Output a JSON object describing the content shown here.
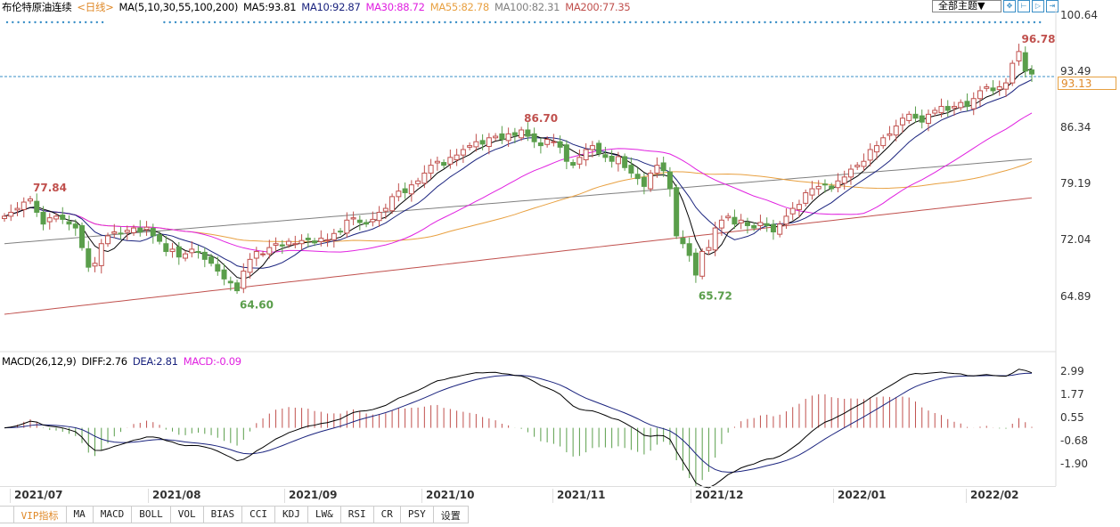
{
  "header": {
    "title": "布伦特原油连续",
    "period": "<日线>",
    "ma_label": "MA(5,10,30,55,100,200)",
    "ma": [
      {
        "label": "MA5:93.81",
        "color": "#000000"
      },
      {
        "label": "MA10:92.87",
        "color": "#1a237e"
      },
      {
        "label": "MA30:88.72",
        "color": "#e020e0"
      },
      {
        "label": "MA55:82.78",
        "color": "#e8a040"
      },
      {
        "label": "MA100:82.31",
        "color": "#808080"
      },
      {
        "label": "MA200:77.35",
        "color": "#c0504d"
      }
    ]
  },
  "toolbar": {
    "theme": "全部主题▼",
    "buttons": [
      "✥",
      "⊢",
      "▷",
      "⇥"
    ]
  },
  "macd_header": {
    "label": "MACD(26,12,9)",
    "diff": "DIFF:2.76",
    "dea": "DEA:2.81",
    "macd": "MACD:-0.09"
  },
  "price_axis": [
    "100.64",
    "93.49",
    "86.34",
    "79.19",
    "72.04",
    "64.89"
  ],
  "last_price": "93.13",
  "macd_axis": [
    "2.99",
    "1.77",
    "0.55",
    "-0.68",
    "-1.90"
  ],
  "date_labels": [
    "2021/07",
    "2021/08",
    "2021/09",
    "2021/10",
    "2021/11",
    "2021/12",
    "2022/01",
    "2022/02"
  ],
  "tabs": [
    "VIP指标",
    "MA",
    "MACD",
    "BOLL",
    "VOL",
    "BIAS",
    "CCI",
    "KDJ",
    "LW&",
    "RSI",
    "CR",
    "PSY",
    "设置"
  ],
  "colors": {
    "up": "#c0504d",
    "down": "#5a9e4b",
    "accent": "#3a8fc7"
  },
  "chart_data": {
    "type": "candlestick",
    "ylim": [
      63,
      101
    ],
    "macd_ylim": [
      -2.6,
      3.3
    ],
    "annotations": [
      {
        "label": "77.84",
        "type": "high"
      },
      {
        "label": "64.60",
        "type": "low"
      },
      {
        "label": "86.70",
        "type": "high"
      },
      {
        "label": "65.72",
        "type": "low"
      },
      {
        "label": "96.78",
        "type": "high"
      }
    ],
    "close": [
      75.0,
      75.5,
      76.0,
      76.8,
      77.2,
      75.5,
      74.0,
      74.8,
      75.0,
      74.6,
      74.0,
      73.5,
      71.0,
      68.5,
      69.0,
      71.5,
      72.5,
      73.0,
      72.8,
      73.2,
      73.5,
      73.0,
      73.6,
      72.5,
      71.8,
      70.5,
      70.8,
      69.8,
      70.2,
      70.8,
      70.4,
      69.5,
      69.0,
      68.0,
      67.0,
      66.5,
      65.5,
      68.0,
      69.5,
      70.5,
      70.2,
      71.0,
      71.5,
      71.2,
      71.8,
      71.5,
      71.9,
      72.0,
      71.6,
      72.2,
      72.0,
      72.8,
      73.0,
      74.5,
      74.8,
      74.2,
      74.0,
      74.6,
      75.5,
      76.0,
      77.5,
      78.2,
      78.0,
      79.0,
      79.5,
      80.5,
      81.5,
      82.0,
      81.5,
      82.5,
      82.8,
      83.5,
      84.0,
      84.5,
      84.2,
      85.0,
      85.2,
      84.8,
      85.5,
      85.3,
      86.0,
      85.2,
      84.5,
      84.0,
      84.8,
      84.5,
      83.8,
      82.0,
      81.5,
      82.5,
      83.5,
      84.0,
      83.0,
      82.5,
      82.0,
      82.6,
      81.2,
      80.5,
      79.8,
      78.8,
      80.5,
      81.5,
      80.8,
      78.5,
      72.5,
      71.5,
      70.0,
      67.5,
      70.5,
      71.0,
      73.5,
      74.5,
      75.0,
      74.0,
      74.5,
      73.8,
      73.5,
      74.2,
      73.8,
      73.0,
      74.0,
      75.0,
      76.0,
      76.5,
      78.0,
      78.5,
      78.8,
      79.0,
      78.5,
      79.5,
      80.0,
      81.0,
      81.5,
      82.0,
      83.5,
      84.0,
      85.0,
      85.5,
      86.5,
      87.5,
      88.0,
      87.5,
      87.0,
      88.0,
      88.5,
      89.0,
      88.5,
      89.0,
      89.5,
      89.0,
      90.0,
      91.0,
      91.5,
      91.0,
      91.5,
      92.0,
      94.5,
      96.0,
      93.5,
      93.13
    ],
    "ma100_range": [
      71.5,
      82.31
    ],
    "ma200_range": [
      62.5,
      77.35
    ]
  }
}
